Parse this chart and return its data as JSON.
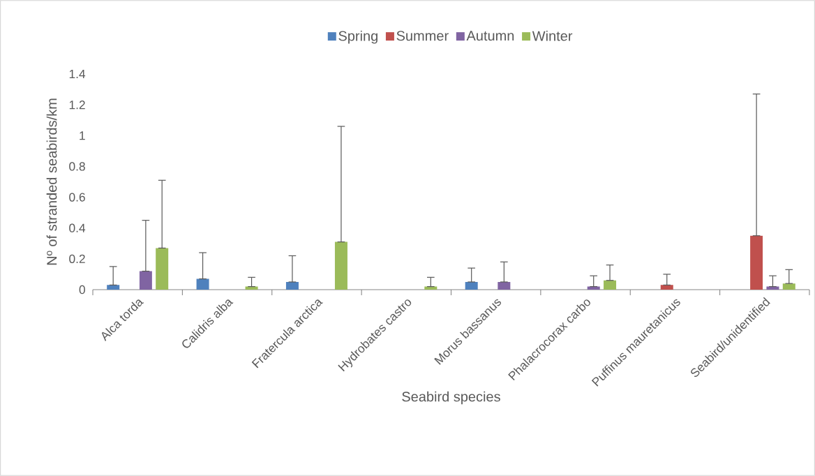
{
  "chart_data": {
    "type": "bar",
    "xlabel": "Seabird species",
    "ylabel": "Nº of stranded seabirds/km",
    "categories": [
      "Alca torda",
      "Calidris alba",
      "Fratercula arctica",
      "Hydrobates castro",
      "Morus bassanus",
      "Phalacrocorax carbo",
      "Puffinus mauretanicus",
      "Seabird/unidentified"
    ],
    "series": [
      {
        "name": "Spring",
        "color": "#4f81bd",
        "values": [
          0.03,
          0.07,
          0.05,
          0,
          0.05,
          0,
          0,
          0
        ],
        "errors": [
          [
            0.03,
            0.15
          ],
          [
            0.07,
            0.24
          ],
          [
            0.05,
            0.22
          ],
          null,
          [
            0.05,
            0.14
          ],
          null,
          null,
          null
        ]
      },
      {
        "name": "Summer",
        "color": "#c0504d",
        "values": [
          0,
          0,
          0,
          0,
          0,
          0,
          0.03,
          0.35
        ],
        "errors": [
          null,
          null,
          null,
          null,
          null,
          null,
          [
            0.03,
            0.1
          ],
          [
            0.35,
            1.27
          ]
        ]
      },
      {
        "name": "Autumn",
        "color": "#8064a2",
        "values": [
          0.12,
          0,
          0,
          0,
          0.05,
          0.02,
          0,
          0.02
        ],
        "errors": [
          [
            0.12,
            0.45
          ],
          null,
          null,
          null,
          [
            0.05,
            0.18
          ],
          [
            0.02,
            0.09
          ],
          null,
          [
            0.02,
            0.09
          ]
        ]
      },
      {
        "name": "Winter",
        "color": "#9bbb59",
        "values": [
          0.27,
          0.02,
          0.31,
          0.02,
          0,
          0.06,
          0,
          0.04
        ],
        "errors": [
          [
            0.27,
            0.71
          ],
          [
            0.02,
            0.08
          ],
          [
            0.31,
            1.06
          ],
          [
            0.02,
            0.08
          ],
          null,
          [
            0.06,
            0.16
          ],
          null,
          [
            0.04,
            0.13
          ]
        ]
      }
    ],
    "ylim": [
      0,
      1.4
    ],
    "yticks": [
      0,
      0.2,
      0.4,
      0.6,
      0.8,
      1,
      1.2,
      1.4
    ],
    "legend": "top"
  }
}
